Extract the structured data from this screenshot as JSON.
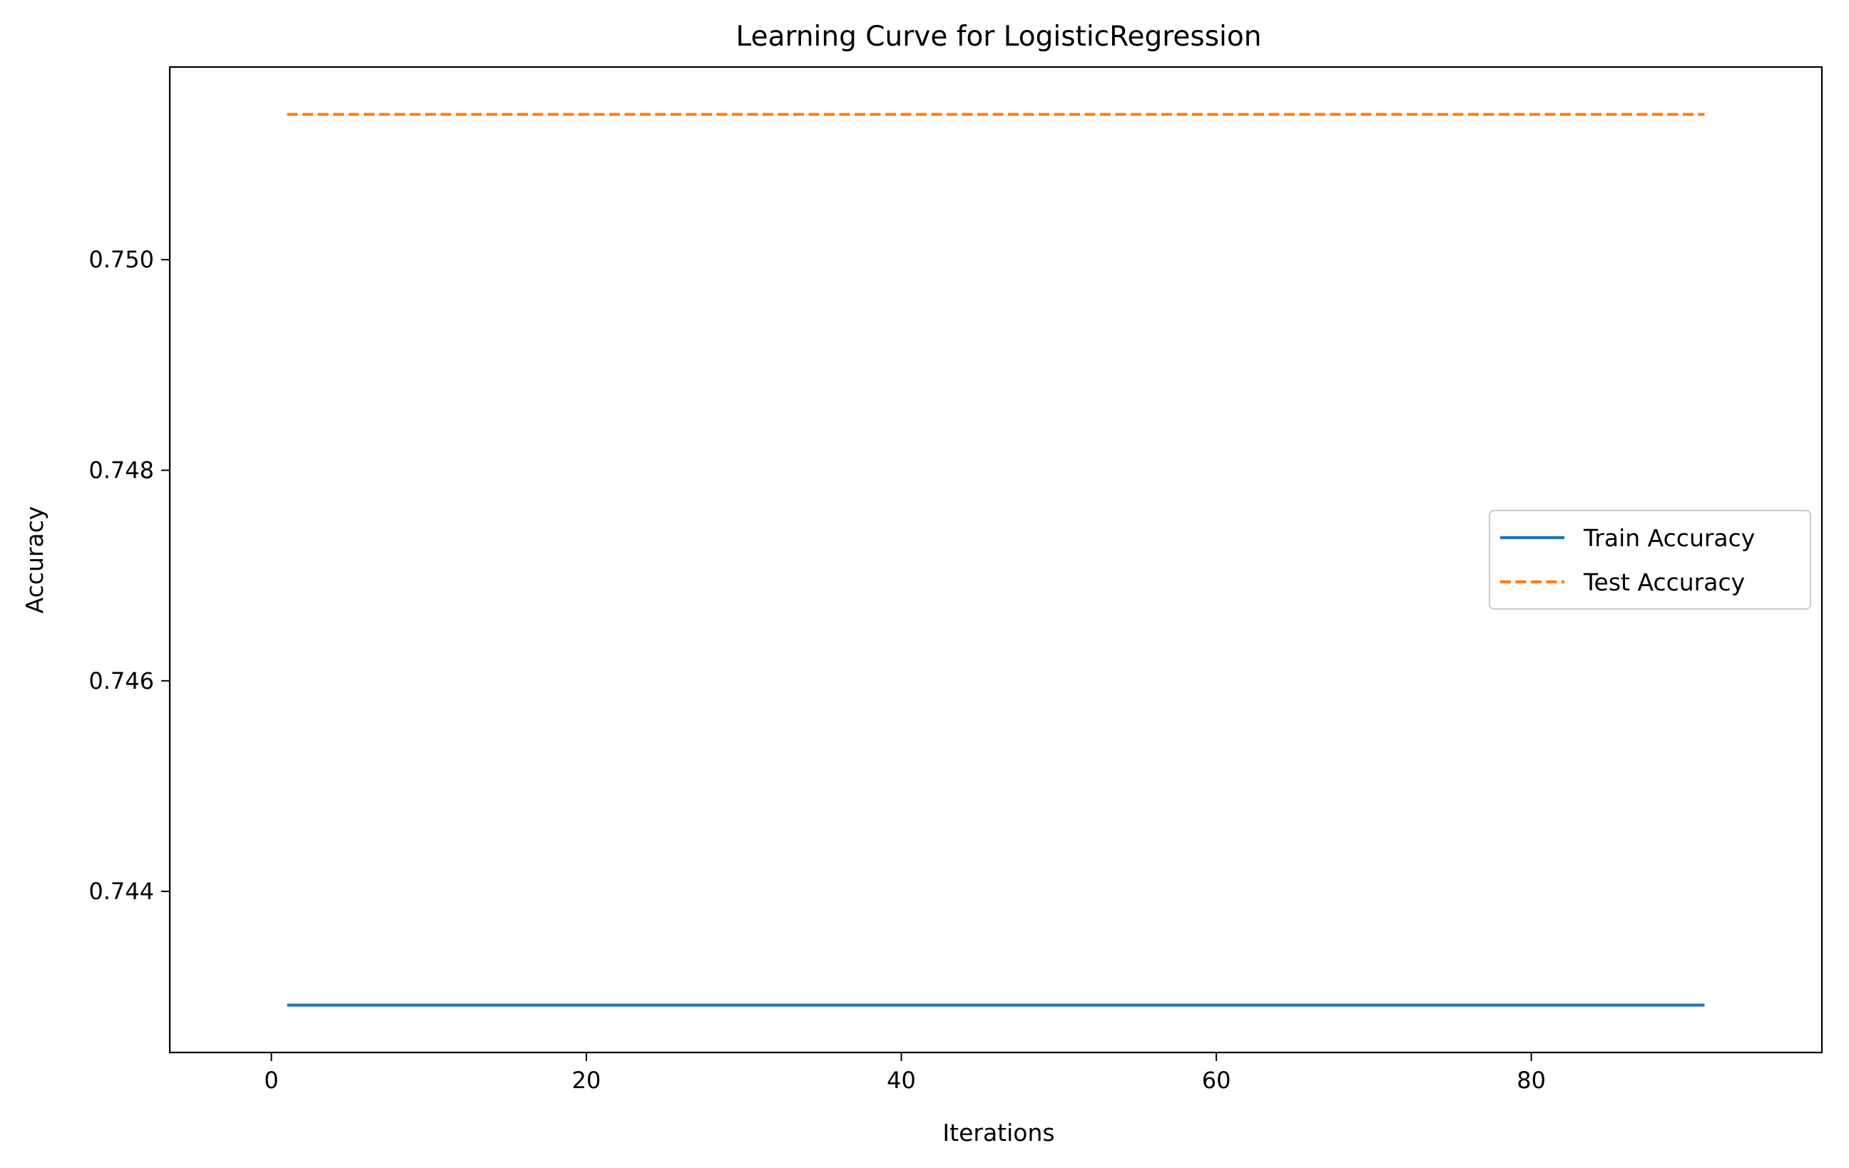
{
  "chart_data": {
    "type": "line",
    "title": "Learning Curve for LogisticRegression",
    "xlabel": "Iterations",
    "ylabel": "Accuracy",
    "xlim": [
      -6.45,
      98.45
    ],
    "ylim": [
      0.74247,
      0.75183
    ],
    "xticks": [
      0,
      20,
      40,
      60,
      80
    ],
    "yticks": [
      0.744,
      0.746,
      0.748,
      0.75
    ],
    "ytick_labels": [
      "0.744",
      "0.746",
      "0.748",
      "0.750"
    ],
    "grid": false,
    "legend_position": "center-right",
    "series": [
      {
        "name": "Train Accuracy",
        "color": "#1f77b4",
        "line_style": "solid",
        "x": [
          1,
          91
        ],
        "y": [
          0.74292,
          0.74292
        ]
      },
      {
        "name": "Test Accuracy",
        "color": "#ff7f0e",
        "line_style": "dashed",
        "x": [
          1,
          91
        ],
        "y": [
          0.75138,
          0.75138
        ]
      }
    ]
  }
}
